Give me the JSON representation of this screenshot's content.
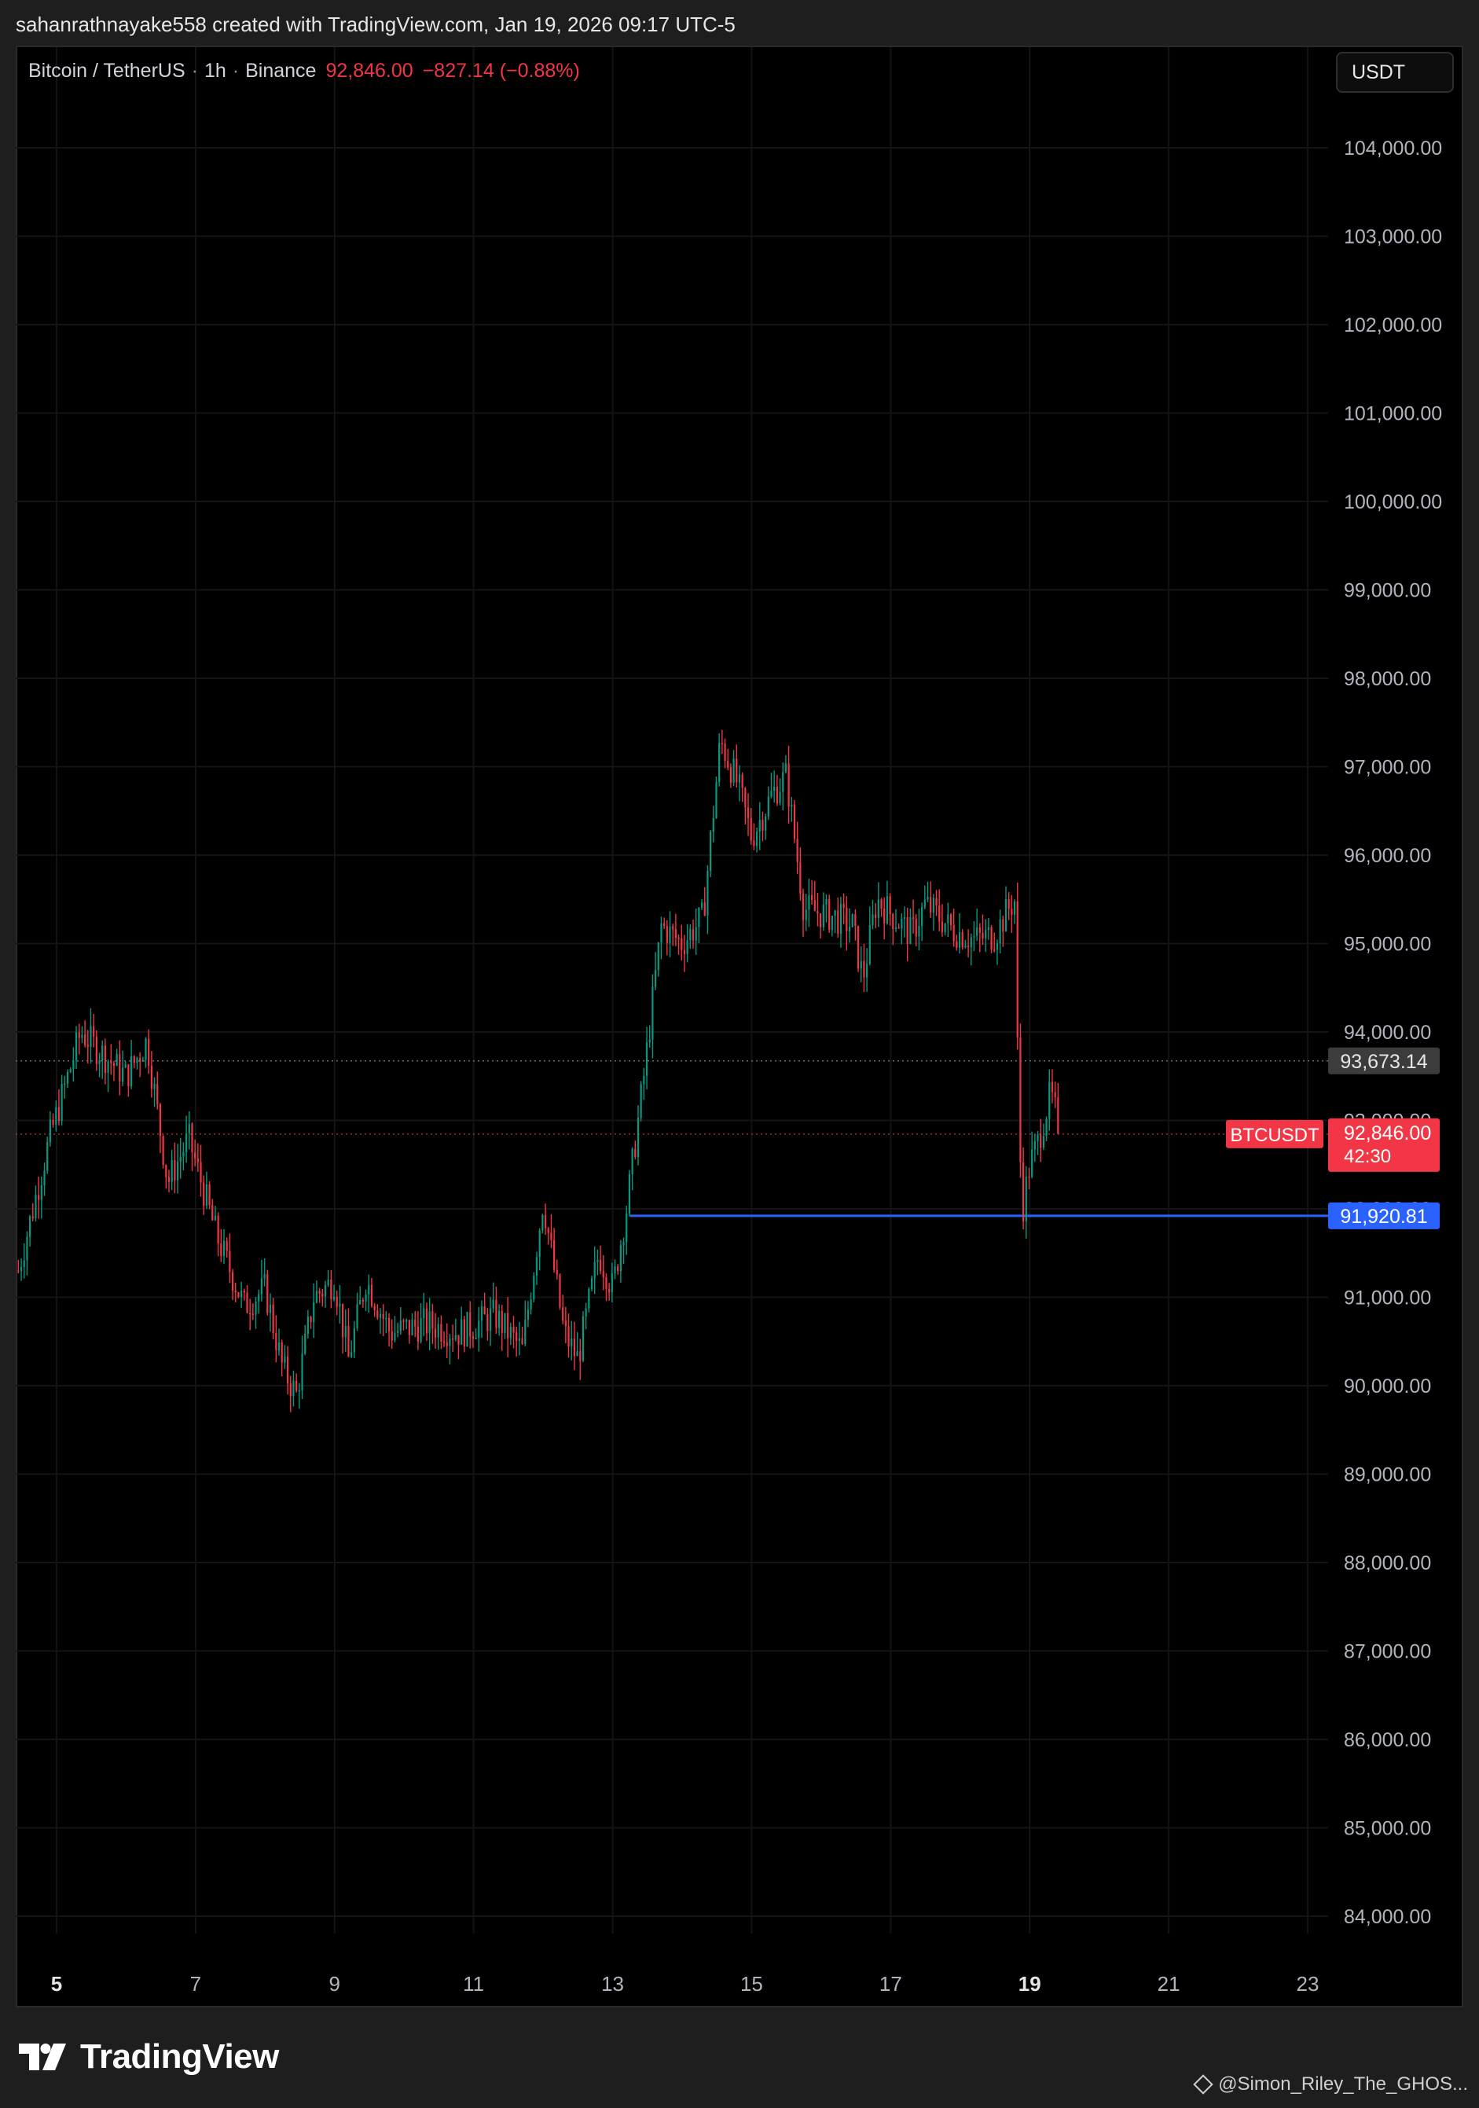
{
  "header": {
    "credit": "sahanrathnayake558 created with TradingView.com, Jan 19, 2026 09:17 UTC-5"
  },
  "legend": {
    "symbol": "Bitcoin / TetherUS",
    "interval": "1h",
    "exchange": "Binance",
    "price": "92,846.00",
    "change": "−827.14 (−0.88%)"
  },
  "currency_button": "USDT",
  "footer": {
    "logo_text": "TradingView",
    "attribution": "@Simon_Riley_The_GHOS..."
  },
  "colors": {
    "up": "#089981",
    "down": "#f23645",
    "support_line": "#2962ff",
    "background": "#000000"
  },
  "chart_data": {
    "type": "candlestick",
    "title": "",
    "xlabel": "",
    "ylabel": "",
    "ylim": [
      83600,
      105000
    ],
    "y_ticks": [
      84000,
      85000,
      86000,
      87000,
      88000,
      89000,
      90000,
      91000,
      92000,
      93000,
      94000,
      95000,
      96000,
      97000,
      98000,
      99000,
      100000,
      101000,
      102000,
      103000,
      104000
    ],
    "y_tick_labels": [
      "84,000.00",
      "85,000.00",
      "86,000.00",
      "87,000.00",
      "88,000.00",
      "89,000.00",
      "90,000.00",
      "91,000.00",
      "92,000.00",
      "93,000.00",
      "94,000.00",
      "95,000.00",
      "96,000.00",
      "97,000.00",
      "98,000.00",
      "99,000.00",
      "100,000.00",
      "101,000.00",
      "102,000.00",
      "103,000.00",
      "104,000.00"
    ],
    "x_ticks": [
      "5",
      "7",
      "9",
      "11",
      "13",
      "15",
      "17",
      "19",
      "21",
      "23"
    ],
    "x_tick_days": [
      5,
      7,
      9,
      11,
      13,
      15,
      17,
      19,
      21,
      23
    ],
    "x_bold_ticks": [
      "5",
      "19"
    ],
    "xlim_days": [
      4.4,
      23.6
    ],
    "grid": true,
    "series_anchor_points": [
      {
        "day": 4.45,
        "close": 91300
      },
      {
        "day": 4.9,
        "close": 92800
      },
      {
        "day": 5.35,
        "close": 94000
      },
      {
        "day": 5.6,
        "close": 93800
      },
      {
        "day": 6.0,
        "close": 93500
      },
      {
        "day": 6.3,
        "close": 93900
      },
      {
        "day": 6.6,
        "close": 92300
      },
      {
        "day": 6.9,
        "close": 92800
      },
      {
        "day": 7.3,
        "close": 91700
      },
      {
        "day": 7.7,
        "close": 90900
      },
      {
        "day": 8.0,
        "close": 91100
      },
      {
        "day": 8.25,
        "close": 90200
      },
      {
        "day": 8.45,
        "close": 89900
      },
      {
        "day": 8.7,
        "close": 91000
      },
      {
        "day": 9.0,
        "close": 91200
      },
      {
        "day": 9.2,
        "close": 90300
      },
      {
        "day": 9.45,
        "close": 91200
      },
      {
        "day": 9.8,
        "close": 90600
      },
      {
        "day": 10.3,
        "close": 90700
      },
      {
        "day": 10.8,
        "close": 90600
      },
      {
        "day": 11.3,
        "close": 90800
      },
      {
        "day": 11.7,
        "close": 90400
      },
      {
        "day": 12.0,
        "close": 92100
      },
      {
        "day": 12.3,
        "close": 90600
      },
      {
        "day": 12.5,
        "close": 90300
      },
      {
        "day": 12.8,
        "close": 91500
      },
      {
        "day": 13.0,
        "close": 91100
      },
      {
        "day": 13.2,
        "close": 92000
      },
      {
        "day": 13.45,
        "close": 93500
      },
      {
        "day": 13.7,
        "close": 95200
      },
      {
        "day": 14.0,
        "close": 95000
      },
      {
        "day": 14.3,
        "close": 95300
      },
      {
        "day": 14.55,
        "close": 97300
      },
      {
        "day": 14.8,
        "close": 96800
      },
      {
        "day": 15.0,
        "close": 96200
      },
      {
        "day": 15.3,
        "close": 96700
      },
      {
        "day": 15.5,
        "close": 96900
      },
      {
        "day": 15.75,
        "close": 95400
      },
      {
        "day": 16.2,
        "close": 95300
      },
      {
        "day": 16.45,
        "close": 95200
      },
      {
        "day": 16.6,
        "close": 94600
      },
      {
        "day": 16.8,
        "close": 95500
      },
      {
        "day": 17.3,
        "close": 95100
      },
      {
        "day": 17.5,
        "close": 95450
      },
      {
        "day": 17.9,
        "close": 95150
      },
      {
        "day": 18.2,
        "close": 95050
      },
      {
        "day": 18.5,
        "close": 95100
      },
      {
        "day": 18.7,
        "close": 95400
      },
      {
        "day": 18.8,
        "close": 95500
      },
      {
        "day": 18.83,
        "close": 93500
      },
      {
        "day": 18.85,
        "close": 92800
      },
      {
        "day": 18.9,
        "close": 92000
      },
      {
        "day": 19.0,
        "close": 92500
      },
      {
        "day": 19.1,
        "close": 92700
      },
      {
        "day": 19.2,
        "close": 93000
      },
      {
        "day": 19.3,
        "close": 93300
      },
      {
        "day": 19.4,
        "close": 93000
      },
      {
        "day": 19.42,
        "close": 92846
      }
    ],
    "horizontal_lines": [
      {
        "value": 93673.14,
        "label": "93,673.14",
        "style": "dotted"
      },
      {
        "value": 92846.0,
        "label": "92,846.00",
        "style": "dotted-red"
      },
      {
        "value": 91920.81,
        "label": "91,920.81",
        "style": "solid-blue",
        "from_day": 13.25
      }
    ],
    "price_tag": {
      "symbol": "BTCUSDT",
      "value": "92,846.00",
      "countdown": "42:30"
    }
  }
}
